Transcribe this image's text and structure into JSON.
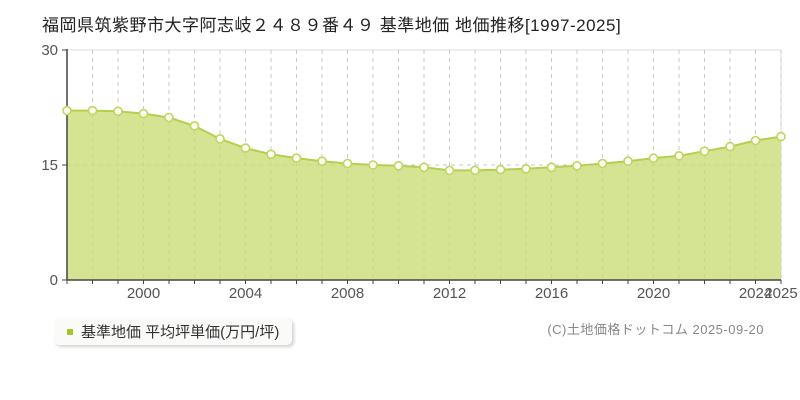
{
  "title": "福岡県筑紫野市大字阿志岐２４８９番４９ 基準地価 地価推移[1997-2025]",
  "legend": {
    "label": "基準地価 平均坪単価(万円/坪)"
  },
  "footer": {
    "copyright": "(C)土地価格ドットコム 2025-09-20"
  },
  "colors": {
    "area_fill": "#c9dd78",
    "line": "#b3d04d",
    "point_stroke": "#bdd75f",
    "point_fill": "#fffdf4",
    "grid": "#c8c8c8",
    "plot_border": "#dddddd",
    "axis": "#444444",
    "tick_text": "#555555",
    "legend_bullet": "#a3c62f"
  },
  "chart_data": {
    "type": "area",
    "title": "福岡県筑紫野市大字阿志岐２４８９番４９ 基準地価 地価推移[1997-2025]",
    "series_name": "基準地価 平均坪単価(万円/坪)",
    "xlabel": "",
    "ylabel": "平均坪単価(万円/坪)",
    "x": [
      1997,
      1998,
      1999,
      2000,
      2001,
      2002,
      2003,
      2004,
      2005,
      2006,
      2007,
      2008,
      2009,
      2010,
      2011,
      2012,
      2013,
      2014,
      2015,
      2016,
      2017,
      2018,
      2019,
      2020,
      2021,
      2022,
      2023,
      2024,
      2025
    ],
    "values": [
      22.1,
      22.1,
      22.0,
      21.7,
      21.2,
      20.1,
      18.4,
      17.2,
      16.4,
      15.9,
      15.5,
      15.2,
      15.0,
      14.9,
      14.7,
      14.3,
      14.3,
      14.4,
      14.5,
      14.7,
      14.9,
      15.2,
      15.5,
      15.9,
      16.2,
      16.8,
      17.4,
      18.2,
      18.7
    ],
    "ylim": [
      0,
      30
    ],
    "yticks": [
      0,
      15,
      30
    ],
    "xtick_labels": [
      2000,
      2004,
      2008,
      2012,
      2016,
      2020,
      2024,
      2025
    ],
    "grid": true,
    "legend_position": "bottom-left"
  }
}
